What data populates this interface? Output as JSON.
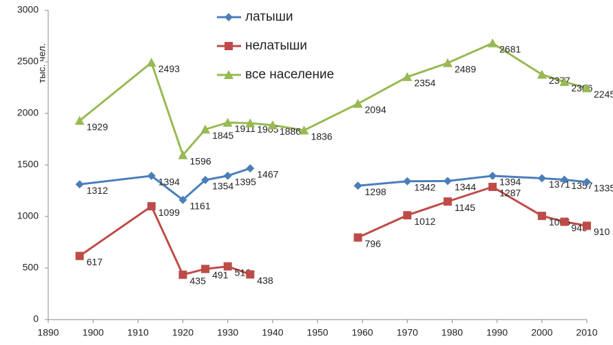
{
  "chart_data": {
    "type": "line",
    "y_label": "тыс. чел.",
    "x": [
      1897,
      1913,
      1920,
      1925,
      1930,
      1935,
      1940,
      1947,
      1959,
      1970,
      1979,
      1989,
      2000,
      2005,
      2010
    ],
    "series": [
      {
        "name": "латыши",
        "color": "#4a7ebb",
        "marker": "diamond",
        "values": [
          1312,
          1394,
          1161,
          1354,
          1395,
          1467,
          null,
          null,
          1298,
          1342,
          1344,
          1394,
          1371,
          1357,
          1335
        ]
      },
      {
        "name": "нелатыши",
        "color": "#be4b48",
        "marker": "square",
        "values": [
          617,
          1099,
          435,
          491,
          516,
          438,
          null,
          null,
          796,
          1012,
          1145,
          1287,
          1006,
          949,
          910
        ]
      },
      {
        "name": "все население",
        "color": "#98b954",
        "marker": "triangle",
        "values": [
          1929,
          2493,
          1596,
          1845,
          1911,
          1905,
          1886,
          1836,
          2094,
          2354,
          2489,
          2681,
          2377,
          2306,
          2245
        ]
      }
    ],
    "xlim": [
      1890,
      2010
    ],
    "xticks": [
      1890,
      1900,
      1910,
      1920,
      1930,
      1940,
      1950,
      1960,
      1970,
      1980,
      1990,
      2000,
      2010
    ],
    "ylim": [
      0,
      3000
    ],
    "yticks": [
      0,
      500,
      1000,
      1500,
      2000,
      2500,
      3000
    ],
    "grid": false,
    "legend": "top"
  }
}
